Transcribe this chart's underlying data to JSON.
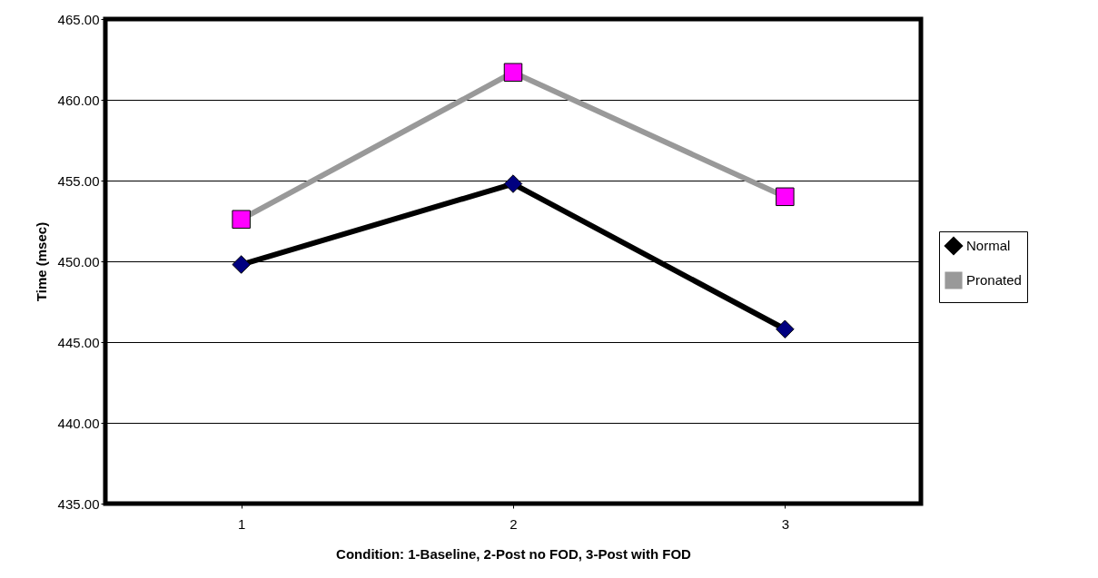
{
  "chart_data": {
    "type": "line",
    "xlabel": "Condition: 1-Baseline, 2-Post no FOD, 3-Post with FOD",
    "ylabel": "Time (msec)",
    "categories": [
      "1",
      "2",
      "3"
    ],
    "series": [
      {
        "name": "Normal",
        "color": "#000000",
        "colors": [
          "#000080",
          "#000080",
          "#000080"
        ],
        "marker": "diamond",
        "values": [
          449.8,
          454.8,
          445.8
        ]
      },
      {
        "name": "Pronated",
        "color": "#999999",
        "colors": [
          "#ff00ff",
          "#ff00ff",
          "#ff00ff"
        ],
        "marker": "square",
        "values": [
          452.6,
          461.7,
          454.0
        ]
      }
    ],
    "ylim": [
      435,
      465
    ],
    "yticks": [
      {
        "value": 435,
        "label": "435.00"
      },
      {
        "value": 440,
        "label": "440.00"
      },
      {
        "value": 445,
        "label": "445.00"
      },
      {
        "value": 450,
        "label": "450.00"
      },
      {
        "value": 455,
        "label": "455.00"
      },
      {
        "value": 460,
        "label": "460.00"
      },
      {
        "value": 465,
        "label": "465.00"
      }
    ],
    "grid": "y",
    "legend": "right",
    "line_style": "solid"
  }
}
